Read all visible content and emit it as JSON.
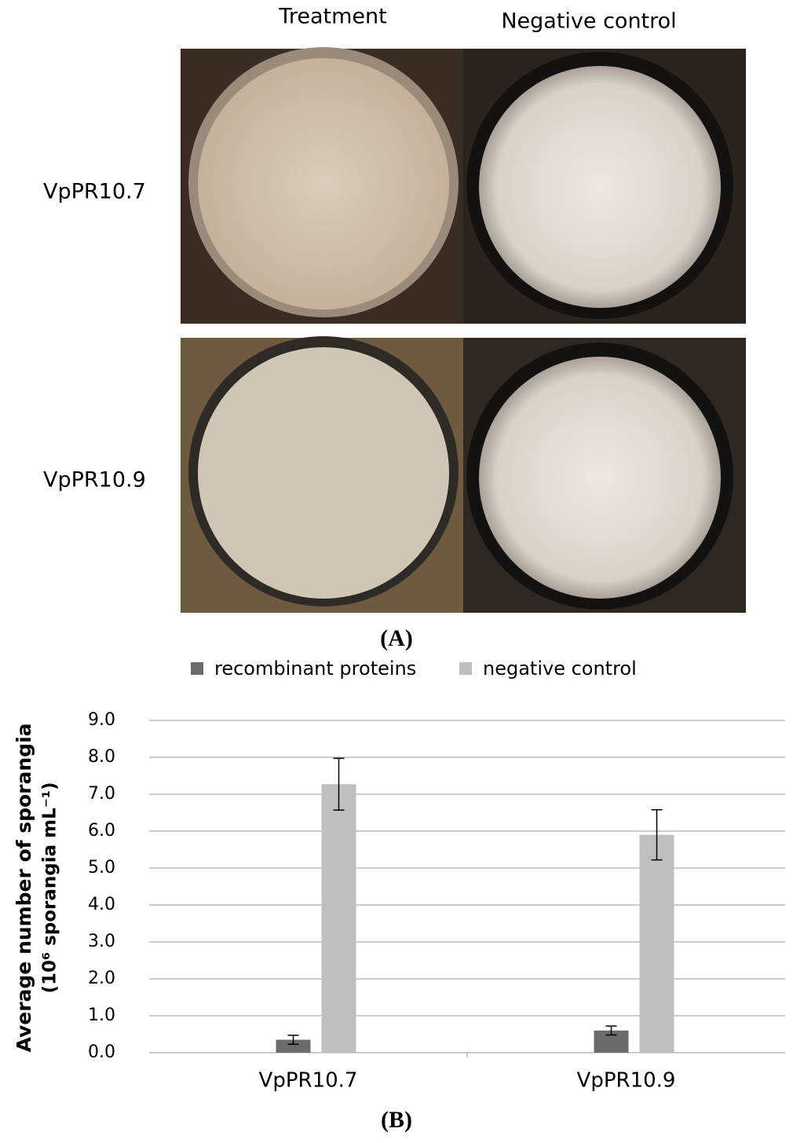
{
  "figure": {
    "column_labels": [
      "Treatment",
      "Negative control"
    ],
    "row_labels": [
      "VpPR10.7",
      "VpPR10.9"
    ],
    "panel_a_label": "(A)",
    "panel_b_label": "(B)"
  },
  "chart_data": {
    "type": "bar",
    "y_label": [
      "Average number of sporangia",
      "(10⁶ sporangia mL⁻¹)"
    ],
    "categories": [
      "VpPR10.7",
      "VpPR10.9"
    ],
    "series": [
      {
        "name": "recombinant proteins",
        "color": "#6b6b6b",
        "values": [
          0.35,
          0.6
        ],
        "errors": [
          0.12,
          0.12
        ]
      },
      {
        "name": "negative control",
        "color": "#bfbfbf",
        "values": [
          7.27,
          5.9
        ],
        "errors": [
          0.7,
          0.68
        ]
      }
    ],
    "ylim": [
      0,
      9
    ],
    "yticks": [
      {
        "value": 0,
        "label": "0.0"
      },
      {
        "value": 1,
        "label": "1.0"
      },
      {
        "value": 2,
        "label": "2.0"
      },
      {
        "value": 3,
        "label": "3.0"
      },
      {
        "value": 4,
        "label": "4.0"
      },
      {
        "value": 5,
        "label": "5.0"
      },
      {
        "value": 6,
        "label": "6.0"
      },
      {
        "value": 7,
        "label": "7.0"
      },
      {
        "value": 8,
        "label": "8.0"
      },
      {
        "value": 9,
        "label": "9.0"
      }
    ],
    "grid": true,
    "legend": "top"
  }
}
